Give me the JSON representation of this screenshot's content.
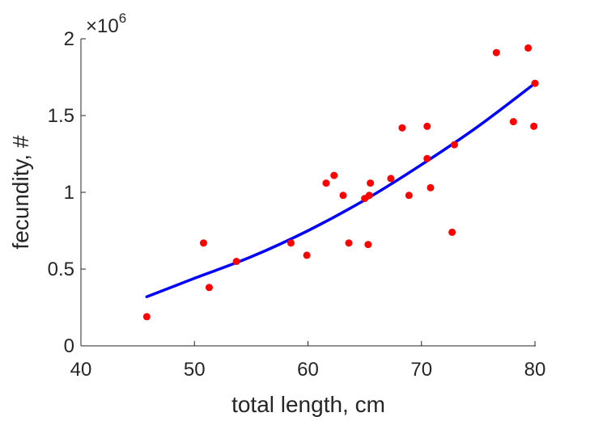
{
  "chart_data": {
    "type": "scatter",
    "xlabel": "total length, cm",
    "ylabel": "fecundity, #",
    "y_exponent_label": "×10",
    "y_exponent_power": "6",
    "xlim": [
      40,
      80
    ],
    "ylim": [
      0,
      2000000
    ],
    "x_ticks": [
      40,
      50,
      60,
      70,
      80
    ],
    "y_ticks": [
      0,
      500000,
      1000000,
      1500000,
      2000000
    ],
    "x_tick_labels": [
      "40",
      "50",
      "60",
      "70",
      "80"
    ],
    "y_tick_labels": [
      "0",
      "0.5",
      "1",
      "1.5",
      "2"
    ],
    "grid": false,
    "colors": {
      "points": "#ff0000",
      "fit": "#0000ff",
      "axes": "#262626"
    },
    "series": [
      {
        "kind": "points",
        "x": [
          45.8,
          50.8,
          51.3,
          53.7,
          58.5,
          59.9,
          61.6,
          62.3,
          63.1,
          63.6,
          65.0,
          65.3,
          65.4,
          65.5,
          67.3,
          68.3,
          68.9,
          70.5,
          70.5,
          70.8,
          72.7,
          72.9,
          76.6,
          78.1,
          79.4,
          79.9,
          80.0
        ],
        "y": [
          190000,
          670000,
          380000,
          550000,
          670000,
          590000,
          1060000,
          1110000,
          980000,
          670000,
          960000,
          660000,
          980000,
          1060000,
          1090000,
          1420000,
          980000,
          1220000,
          1430000,
          1030000,
          740000,
          1310000,
          1910000,
          1460000,
          1940000,
          1430000,
          1710000
        ]
      },
      {
        "kind": "fit",
        "x": [
          45.8,
          50,
          55,
          60,
          65,
          70,
          75,
          80
        ],
        "y": [
          320000,
          440000,
          580000,
          750000,
          950000,
          1180000,
          1430000,
          1710000
        ]
      }
    ]
  }
}
